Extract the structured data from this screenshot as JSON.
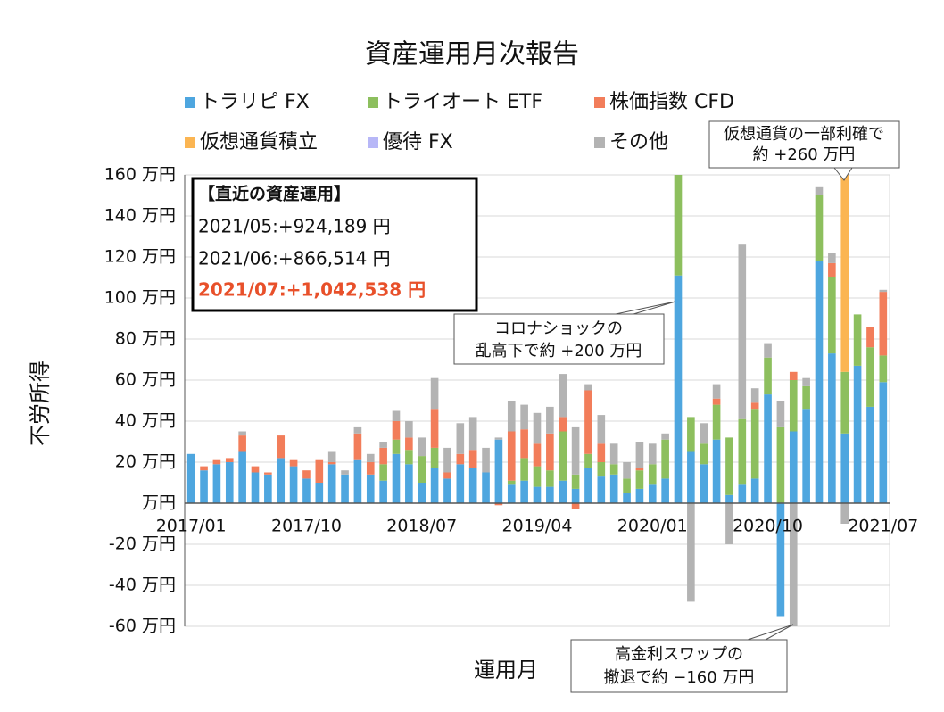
{
  "chart_data": {
    "type": "bar",
    "stacked": true,
    "title": "資産運用月次報告",
    "ylabel": "不労所得",
    "xlabel": "運用月",
    "categories": [
      "2017/01",
      null,
      null,
      null,
      null,
      null,
      null,
      null,
      null,
      "2017/10",
      null,
      null,
      null,
      null,
      null,
      null,
      null,
      null,
      "2018/07",
      null,
      null,
      null,
      null,
      null,
      null,
      null,
      null,
      "2019/04",
      null,
      null,
      null,
      null,
      null,
      null,
      null,
      null,
      "2020/01",
      null,
      null,
      null,
      null,
      null,
      null,
      null,
      null,
      "2020/10",
      null,
      null,
      null,
      null,
      null,
      null,
      null,
      null,
      "2021/07"
    ],
    "series": [
      {
        "name": "トラリピ FX",
        "color": "#4ea6df",
        "values": [
          24,
          16,
          19,
          20,
          25,
          15,
          14,
          22,
          18,
          12,
          10,
          19,
          14,
          21,
          14,
          11,
          24,
          19,
          10,
          17,
          12,
          19,
          17,
          15,
          31,
          9,
          11,
          8,
          8,
          11,
          7,
          17,
          13,
          14,
          5,
          7,
          9,
          12,
          111,
          25,
          19,
          31,
          4,
          9,
          12,
          53,
          -55,
          35,
          46,
          118,
          73,
          34,
          67,
          47,
          59
        ]
      },
      {
        "name": "トライオート ETF",
        "color": "#8dbf5e",
        "values": [
          0,
          0,
          0,
          0,
          0,
          0,
          0,
          0,
          0,
          0,
          0,
          0,
          0,
          0,
          0,
          8,
          7,
          7,
          13,
          10,
          0,
          0,
          0,
          0,
          0,
          2,
          11,
          10,
          8,
          24,
          7,
          7,
          7,
          5,
          7,
          9,
          10,
          19,
          49,
          17,
          10,
          17,
          28,
          32,
          34,
          18,
          37,
          25,
          11,
          32,
          37,
          30,
          25,
          29,
          13
        ]
      },
      {
        "name": "株価指数 CFD",
        "color": "#f27d5a",
        "values": [
          0,
          2,
          2,
          2,
          8,
          3,
          1,
          11,
          3,
          4,
          11,
          1,
          0,
          13,
          6,
          8,
          9,
          6,
          0,
          19,
          3,
          5,
          9,
          0,
          -1,
          24,
          14,
          11,
          18,
          7,
          -3,
          31,
          9,
          0,
          0,
          1,
          0,
          0,
          0,
          0,
          0,
          3,
          0,
          0,
          3,
          0,
          0,
          4,
          0,
          0,
          7,
          0,
          0,
          10,
          31
        ]
      },
      {
        "name": "仮想通貨積立",
        "color": "#fbb552",
        "values": [
          0,
          0,
          0,
          0,
          0,
          0,
          0,
          0,
          0,
          0,
          0,
          0,
          0,
          0,
          0,
          0,
          0,
          0,
          0,
          0,
          0,
          0,
          0,
          0,
          0,
          0,
          0,
          0,
          0,
          0,
          0,
          0,
          0,
          0,
          0,
          0,
          0,
          0,
          0,
          0,
          0,
          0,
          0,
          0,
          0,
          0,
          0,
          0,
          0,
          0,
          0,
          96,
          0,
          0,
          0
        ]
      },
      {
        "name": "優待 FX",
        "color": "#b7b7f7",
        "values": [
          0,
          0,
          0,
          0,
          0,
          0,
          0,
          0,
          0,
          0,
          0,
          0,
          0,
          0,
          0,
          0,
          0,
          0,
          0,
          0,
          0,
          0,
          0,
          0,
          0,
          0,
          0,
          0,
          0,
          0,
          0,
          0,
          0,
          0,
          0,
          0,
          0,
          0,
          0,
          0,
          0,
          0,
          0,
          0,
          0,
          0,
          0,
          0,
          0,
          0,
          0,
          0,
          0,
          0,
          0
        ]
      },
      {
        "name": "その他",
        "color": "#b3b3b3",
        "values": [
          0,
          0,
          0,
          0,
          2,
          0,
          0,
          0,
          0,
          0,
          0,
          5,
          2,
          3,
          4,
          3,
          5,
          8,
          9,
          15,
          12,
          15,
          16,
          12,
          1,
          15,
          12,
          15,
          13,
          21,
          23,
          3,
          14,
          10,
          8,
          13,
          10,
          3,
          0,
          -48,
          10,
          7,
          -20,
          85,
          7,
          7,
          13,
          -60,
          4,
          4,
          5,
          -10,
          0,
          0,
          1
        ]
      }
    ],
    "ylim": [
      -60,
      160
    ],
    "yticks": [
      {
        "value": -60,
        "label": "-60 万円"
      },
      {
        "value": -40,
        "label": "-40 万円"
      },
      {
        "value": -20,
        "label": "-20 万円"
      },
      {
        "value": 0,
        "label": "万円"
      },
      {
        "value": 20,
        "label": "20 万円"
      },
      {
        "value": 40,
        "label": "40 万円"
      },
      {
        "value": 60,
        "label": "60 万円"
      },
      {
        "value": 80,
        "label": "80 万円"
      },
      {
        "value": 100,
        "label": "100 万円"
      },
      {
        "value": 120,
        "label": "120 万円"
      },
      {
        "value": 140,
        "label": "140 万円"
      },
      {
        "value": 160,
        "label": "160 万円"
      }
    ],
    "grid": true,
    "info_box": {
      "title": "【直近の資産運用】",
      "lines": [
        "2021/05:+924,189 円",
        "2021/06:+866,514 円",
        "2021/07:+1,042,538 円"
      ]
    },
    "annotations": [
      {
        "lines": [
          "コロナショックの",
          "乱高下で約 +200 万円"
        ]
      },
      {
        "lines": [
          "仮想通貨の一部利確で",
          "約 +260 万円"
        ]
      },
      {
        "lines": [
          "高金利スワップの",
          "撤退で約 −160 万円"
        ]
      }
    ]
  }
}
